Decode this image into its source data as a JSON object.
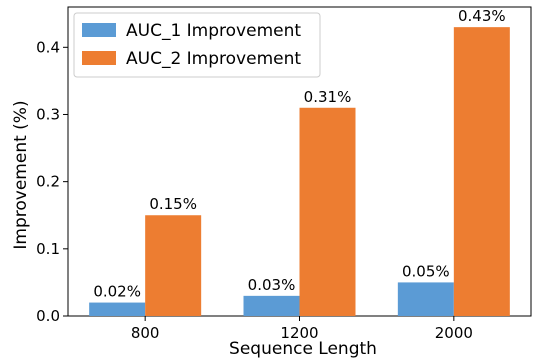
{
  "chart_data": {
    "type": "bar",
    "categories": [
      "800",
      "1200",
      "2000"
    ],
    "series": [
      {
        "name": "AUC_1 Improvement",
        "values": [
          0.02,
          0.03,
          0.05
        ],
        "labels": [
          "0.02%",
          "0.03%",
          "0.05%"
        ],
        "color": "#5b9bd5"
      },
      {
        "name": "AUC_2 Improvement",
        "values": [
          0.15,
          0.31,
          0.43
        ],
        "labels": [
          "0.15%",
          "0.31%",
          "0.43%"
        ],
        "color": "#ed7d31"
      }
    ],
    "xlabel": "Sequence Length",
    "ylabel": "Improvement (%)",
    "ylim": [
      0,
      0.46
    ],
    "yticks": [
      0.0,
      0.1,
      0.2,
      0.3,
      0.4
    ],
    "ytick_labels": [
      "0.0",
      "0.1",
      "0.2",
      "0.3",
      "0.4"
    ],
    "grid": false,
    "legend_position": "top-left"
  }
}
